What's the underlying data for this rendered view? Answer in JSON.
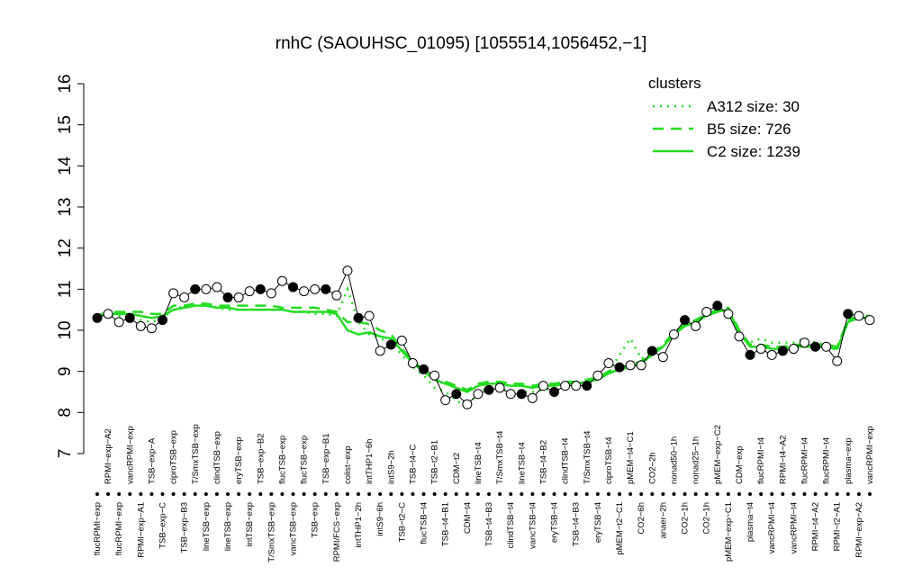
{
  "chart_data": {
    "type": "line-points",
    "title": "rnhC (SAOUHSC_01095) [1055514,1056452,−1]",
    "ylim": [
      7,
      16
    ],
    "yticks": [
      7,
      8,
      9,
      10,
      11,
      12,
      13,
      14,
      15,
      16
    ],
    "legend_title": "clusters",
    "legend_position": "top-right",
    "categories": [
      "flucRPMI−exp",
      "RPMI−exp−A2",
      "flucRPMI−exp",
      "vancRPMI−exp",
      "RPMI−exp−A1",
      "TSB−exp−A",
      "TSB−exp−C",
      "ciproTSB−exp",
      "TSB−exp−B3",
      "T/SmxTSB−exp",
      "lineTSB−exp",
      "clindTSB−exp",
      "lineTSB−exp",
      "eryTSB−exp",
      "intTSB−exp",
      "TSB−exp−B2",
      "T/SmxTSB−exp",
      "flucTSB−exp",
      "vancTSB−exp",
      "flucTSB−exp",
      "TSB−exp",
      "TSB−exp−B1",
      "RPMI/FCS−exp",
      "colist−exp",
      "intTHP1−2h",
      "intTHP1−6h",
      "intS9−6h",
      "intS9−2h",
      "TSB−t2−C",
      "TSB−t4−C",
      "flucTSB−t4",
      "TSB−t2−B1",
      "TSB−t4−B1",
      "CDM−t2",
      "CDM−t4",
      "lineTSB−t4",
      "TSB−t4−B3",
      "T/SmxTSB−t4",
      "clindTSB−t4",
      "lineTSB−t4",
      "vancTSB−t4",
      "TSB−t4−B2",
      "eryTSB−t4",
      "clindTSB−t4",
      "TSB−t4−B3",
      "T/SmxTSB−t4",
      "eryTSB−t4",
      "ciproTSB−t4",
      "pMEM−t2−C1",
      "pMEM−t4−C1",
      "CO2−6h",
      "CO2−2h",
      "anaer−2h",
      "nonad50−1h",
      "CO2−1h",
      "nonad25−1h",
      "CO2−1h",
      "pMEM−exp−C2",
      "pMEM−exp−C1",
      "CDM−exp",
      "plasma−t4",
      "flucRPMI−t4",
      "vancRPMI−t4",
      "RPMI−t4−A2",
      "vancRPMI−t4",
      "flucRPMI−t4",
      "RPMI−t4−A2",
      "flucRPMI−t4",
      "RPMI−t2−A1",
      "plasma−exp",
      "RPMI−exp−A2",
      "vancRPMI−exp"
    ],
    "values": [
      10.3,
      10.4,
      10.2,
      10.3,
      10.1,
      10.05,
      10.25,
      10.9,
      10.8,
      11.0,
      11.0,
      11.05,
      10.8,
      10.8,
      10.95,
      11.0,
      10.9,
      11.2,
      11.05,
      10.95,
      11.0,
      11.0,
      10.85,
      11.45,
      10.3,
      10.35,
      9.5,
      9.65,
      9.75,
      9.2,
      9.05,
      8.9,
      8.3,
      8.45,
      8.2,
      8.45,
      8.55,
      8.6,
      8.45,
      8.45,
      8.35,
      8.65,
      8.5,
      8.65,
      8.65,
      8.65,
      8.9,
      9.2,
      9.1,
      9.15,
      9.15,
      9.5,
      9.35,
      9.9,
      10.25,
      10.1,
      10.45,
      10.6,
      10.4,
      9.85,
      9.4,
      9.55,
      9.4,
      9.5,
      9.55,
      9.7,
      9.6,
      9.6,
      9.25,
      10.4,
      10.35,
      10.25
    ],
    "point_color": "#000000",
    "series": [
      {
        "name": "A312 size: 30",
        "color": "#22dd22",
        "linestyle": "dotted",
        "values": [
          10.3,
          10.35,
          10.35,
          10.3,
          10.25,
          10.2,
          10.3,
          10.5,
          10.6,
          10.6,
          10.6,
          10.55,
          10.5,
          10.5,
          10.5,
          10.5,
          10.5,
          10.5,
          10.45,
          10.45,
          10.4,
          10.4,
          10.35,
          11.0,
          10.2,
          9.9,
          9.8,
          9.7,
          9.4,
          9.1,
          8.9,
          8.6,
          8.5,
          8.3,
          8.1,
          8.5,
          8.6,
          8.6,
          8.5,
          8.5,
          8.5,
          8.55,
          8.6,
          8.6,
          8.65,
          8.7,
          8.8,
          9.0,
          9.4,
          9.8,
          9.3,
          9.5,
          9.6,
          9.9,
          10.1,
          10.2,
          10.4,
          10.5,
          10.5,
          9.9,
          9.7,
          9.8,
          9.7,
          9.7,
          9.7,
          9.8,
          9.7,
          9.65,
          9.5,
          10.2,
          10.3,
          10.3
        ]
      },
      {
        "name": "B5 size: 726",
        "color": "#22dd22",
        "linestyle": "dashed",
        "values": [
          10.35,
          10.45,
          10.45,
          10.45,
          10.45,
          10.4,
          10.4,
          10.6,
          10.6,
          10.65,
          10.65,
          10.6,
          10.6,
          10.6,
          10.6,
          10.6,
          10.6,
          10.55,
          10.55,
          10.55,
          10.55,
          10.5,
          10.45,
          10.2,
          10.2,
          10.15,
          10.0,
          9.9,
          9.55,
          9.25,
          9.05,
          8.85,
          8.75,
          8.65,
          8.55,
          8.7,
          8.75,
          8.75,
          8.7,
          8.7,
          8.65,
          8.7,
          8.7,
          8.75,
          8.75,
          8.8,
          8.85,
          9.0,
          9.1,
          9.15,
          9.25,
          9.45,
          9.65,
          9.95,
          10.15,
          10.25,
          10.4,
          10.5,
          10.55,
          10.0,
          9.65,
          9.65,
          9.6,
          9.6,
          9.65,
          9.65,
          9.65,
          9.65,
          9.6,
          10.25,
          10.35,
          10.35
        ]
      },
      {
        "name": "C2 size: 1239",
        "color": "#22dd22",
        "linestyle": "solid",
        "values": [
          10.35,
          10.4,
          10.4,
          10.4,
          10.35,
          10.3,
          10.35,
          10.5,
          10.55,
          10.6,
          10.6,
          10.55,
          10.55,
          10.5,
          10.5,
          10.5,
          10.5,
          10.5,
          10.45,
          10.45,
          10.45,
          10.45,
          10.4,
          10.0,
          9.9,
          9.95,
          9.85,
          9.8,
          9.5,
          9.2,
          9.0,
          8.8,
          8.7,
          8.6,
          8.5,
          8.65,
          8.7,
          8.7,
          8.65,
          8.65,
          8.6,
          8.65,
          8.65,
          8.7,
          8.7,
          8.75,
          8.8,
          8.95,
          9.05,
          9.1,
          9.2,
          9.4,
          9.6,
          9.9,
          10.1,
          10.2,
          10.35,
          10.45,
          10.5,
          9.95,
          9.6,
          9.6,
          9.55,
          9.55,
          9.6,
          9.6,
          9.6,
          9.6,
          9.55,
          10.2,
          10.3,
          10.3
        ]
      }
    ]
  }
}
